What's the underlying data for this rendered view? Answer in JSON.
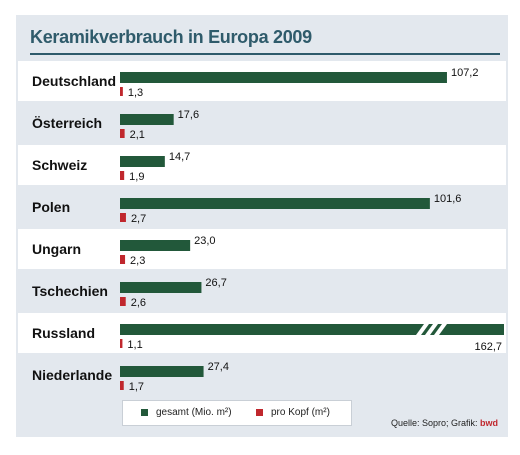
{
  "title": "Keramikverbrauch in Europa 2009",
  "colors": {
    "total": "#22583a",
    "per_capita": "#c0272d",
    "title": "#2f5b6b"
  },
  "chart_data": {
    "type": "bar",
    "orientation": "horizontal",
    "categories": [
      "Deutschland",
      "Österreich",
      "Schweiz",
      "Polen",
      "Ungarn",
      "Tschechien",
      "Russland",
      "Niederlande"
    ],
    "series": [
      {
        "name": "gesamt (Mio. m²)",
        "values": [
          107.2,
          17.6,
          14.7,
          101.6,
          23.0,
          26.7,
          162.7,
          27.4
        ],
        "labels": [
          "107,2",
          "17,6",
          "14,7",
          "101,6",
          "23,0",
          "26,7",
          "162,7",
          "27,4"
        ]
      },
      {
        "name": "pro Kopf (m²)",
        "values": [
          1.3,
          2.1,
          1.9,
          2.7,
          2.3,
          2.6,
          1.1,
          1.7
        ],
        "labels": [
          "1,3",
          "2,1",
          "1,9",
          "2,7",
          "2,3",
          "2,6",
          "1,1",
          "1,7"
        ]
      }
    ],
    "axis_break_category": "Russland",
    "legend_position": "bottom"
  },
  "legend": {
    "total": "gesamt (Mio. m²)",
    "per_capita": "pro Kopf (m²)"
  },
  "source": {
    "text": "Quelle: Sopro; Grafik: ",
    "brand": "bwd"
  }
}
